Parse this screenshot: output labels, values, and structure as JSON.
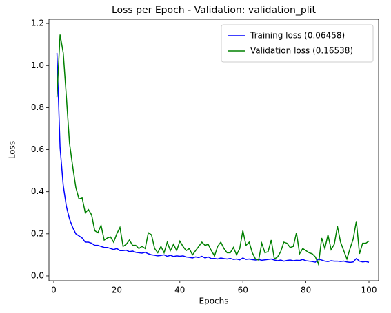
{
  "chart_data": {
    "type": "line",
    "title": "Loss per Epoch - Validation: validation_plit",
    "xlabel": "Epochs",
    "ylabel": "Loss",
    "x": [
      1,
      2,
      3,
      4,
      5,
      6,
      7,
      8,
      9,
      10,
      11,
      12,
      13,
      14,
      15,
      16,
      17,
      18,
      19,
      20,
      21,
      22,
      23,
      24,
      25,
      26,
      27,
      28,
      29,
      30,
      31,
      32,
      33,
      34,
      35,
      36,
      37,
      38,
      39,
      40,
      41,
      42,
      43,
      44,
      45,
      46,
      47,
      48,
      49,
      50,
      51,
      52,
      53,
      54,
      55,
      56,
      57,
      58,
      59,
      60,
      61,
      62,
      63,
      64,
      65,
      66,
      67,
      68,
      69,
      70,
      71,
      72,
      73,
      74,
      75,
      76,
      77,
      78,
      79,
      80,
      81,
      82,
      83,
      84,
      85,
      86,
      87,
      88,
      89,
      90,
      91,
      92,
      93,
      94,
      95,
      96,
      97,
      98,
      99,
      100
    ],
    "series": [
      {
        "name": "Training loss (0.06458)",
        "color": "#0000ff",
        "values": [
          1.06,
          0.61,
          0.43,
          0.33,
          0.27,
          0.23,
          0.2,
          0.19,
          0.18,
          0.16,
          0.16,
          0.155,
          0.145,
          0.145,
          0.14,
          0.135,
          0.135,
          0.13,
          0.125,
          0.13,
          0.12,
          0.12,
          0.122,
          0.115,
          0.118,
          0.112,
          0.11,
          0.108,
          0.112,
          0.105,
          0.1,
          0.098,
          0.095,
          0.097,
          0.1,
          0.093,
          0.098,
          0.092,
          0.095,
          0.093,
          0.095,
          0.09,
          0.088,
          0.085,
          0.09,
          0.087,
          0.093,
          0.085,
          0.09,
          0.082,
          0.083,
          0.08,
          0.085,
          0.082,
          0.08,
          0.083,
          0.078,
          0.08,
          0.076,
          0.085,
          0.078,
          0.08,
          0.077,
          0.075,
          0.078,
          0.074,
          0.076,
          0.078,
          0.08,
          0.075,
          0.072,
          0.075,
          0.07,
          0.073,
          0.075,
          0.072,
          0.074,
          0.073,
          0.078,
          0.072,
          0.07,
          0.068,
          0.065,
          0.08,
          0.075,
          0.07,
          0.068,
          0.072,
          0.07,
          0.07,
          0.068,
          0.07,
          0.066,
          0.064,
          0.066,
          0.082,
          0.07,
          0.066,
          0.068,
          0.06458
        ]
      },
      {
        "name": "Validation loss (0.16538)",
        "color": "#008000",
        "values": [
          0.85,
          1.147,
          1.06,
          0.85,
          0.63,
          0.52,
          0.42,
          0.365,
          0.37,
          0.3,
          0.315,
          0.29,
          0.215,
          0.205,
          0.24,
          0.17,
          0.18,
          0.185,
          0.16,
          0.2,
          0.23,
          0.14,
          0.15,
          0.17,
          0.145,
          0.145,
          0.13,
          0.14,
          0.13,
          0.205,
          0.195,
          0.13,
          0.11,
          0.14,
          0.11,
          0.16,
          0.12,
          0.15,
          0.12,
          0.165,
          0.14,
          0.12,
          0.13,
          0.1,
          0.12,
          0.14,
          0.16,
          0.145,
          0.15,
          0.12,
          0.095,
          0.14,
          0.16,
          0.13,
          0.11,
          0.11,
          0.135,
          0.1,
          0.13,
          0.215,
          0.145,
          0.16,
          0.11,
          0.08,
          0.075,
          0.155,
          0.11,
          0.115,
          0.17,
          0.08,
          0.09,
          0.115,
          0.16,
          0.155,
          0.135,
          0.14,
          0.205,
          0.105,
          0.13,
          0.12,
          0.11,
          0.105,
          0.09,
          0.055,
          0.18,
          0.13,
          0.195,
          0.125,
          0.15,
          0.235,
          0.16,
          0.12,
          0.08,
          0.13,
          0.175,
          0.26,
          0.105,
          0.155,
          0.155,
          0.16538
        ]
      }
    ],
    "xlim": [
      -1.53,
      103.06
    ],
    "xticks": [
      0,
      20,
      40,
      60,
      80,
      100
    ],
    "ylim": [
      -0.023,
      1.22
    ],
    "yticks": [
      {
        "value": 0,
        "label": "0.0"
      },
      0.2,
      0.4,
      0.6,
      0.8,
      {
        "value": 1,
        "label": "1.0"
      },
      1.2
    ],
    "legend": "upper right"
  }
}
